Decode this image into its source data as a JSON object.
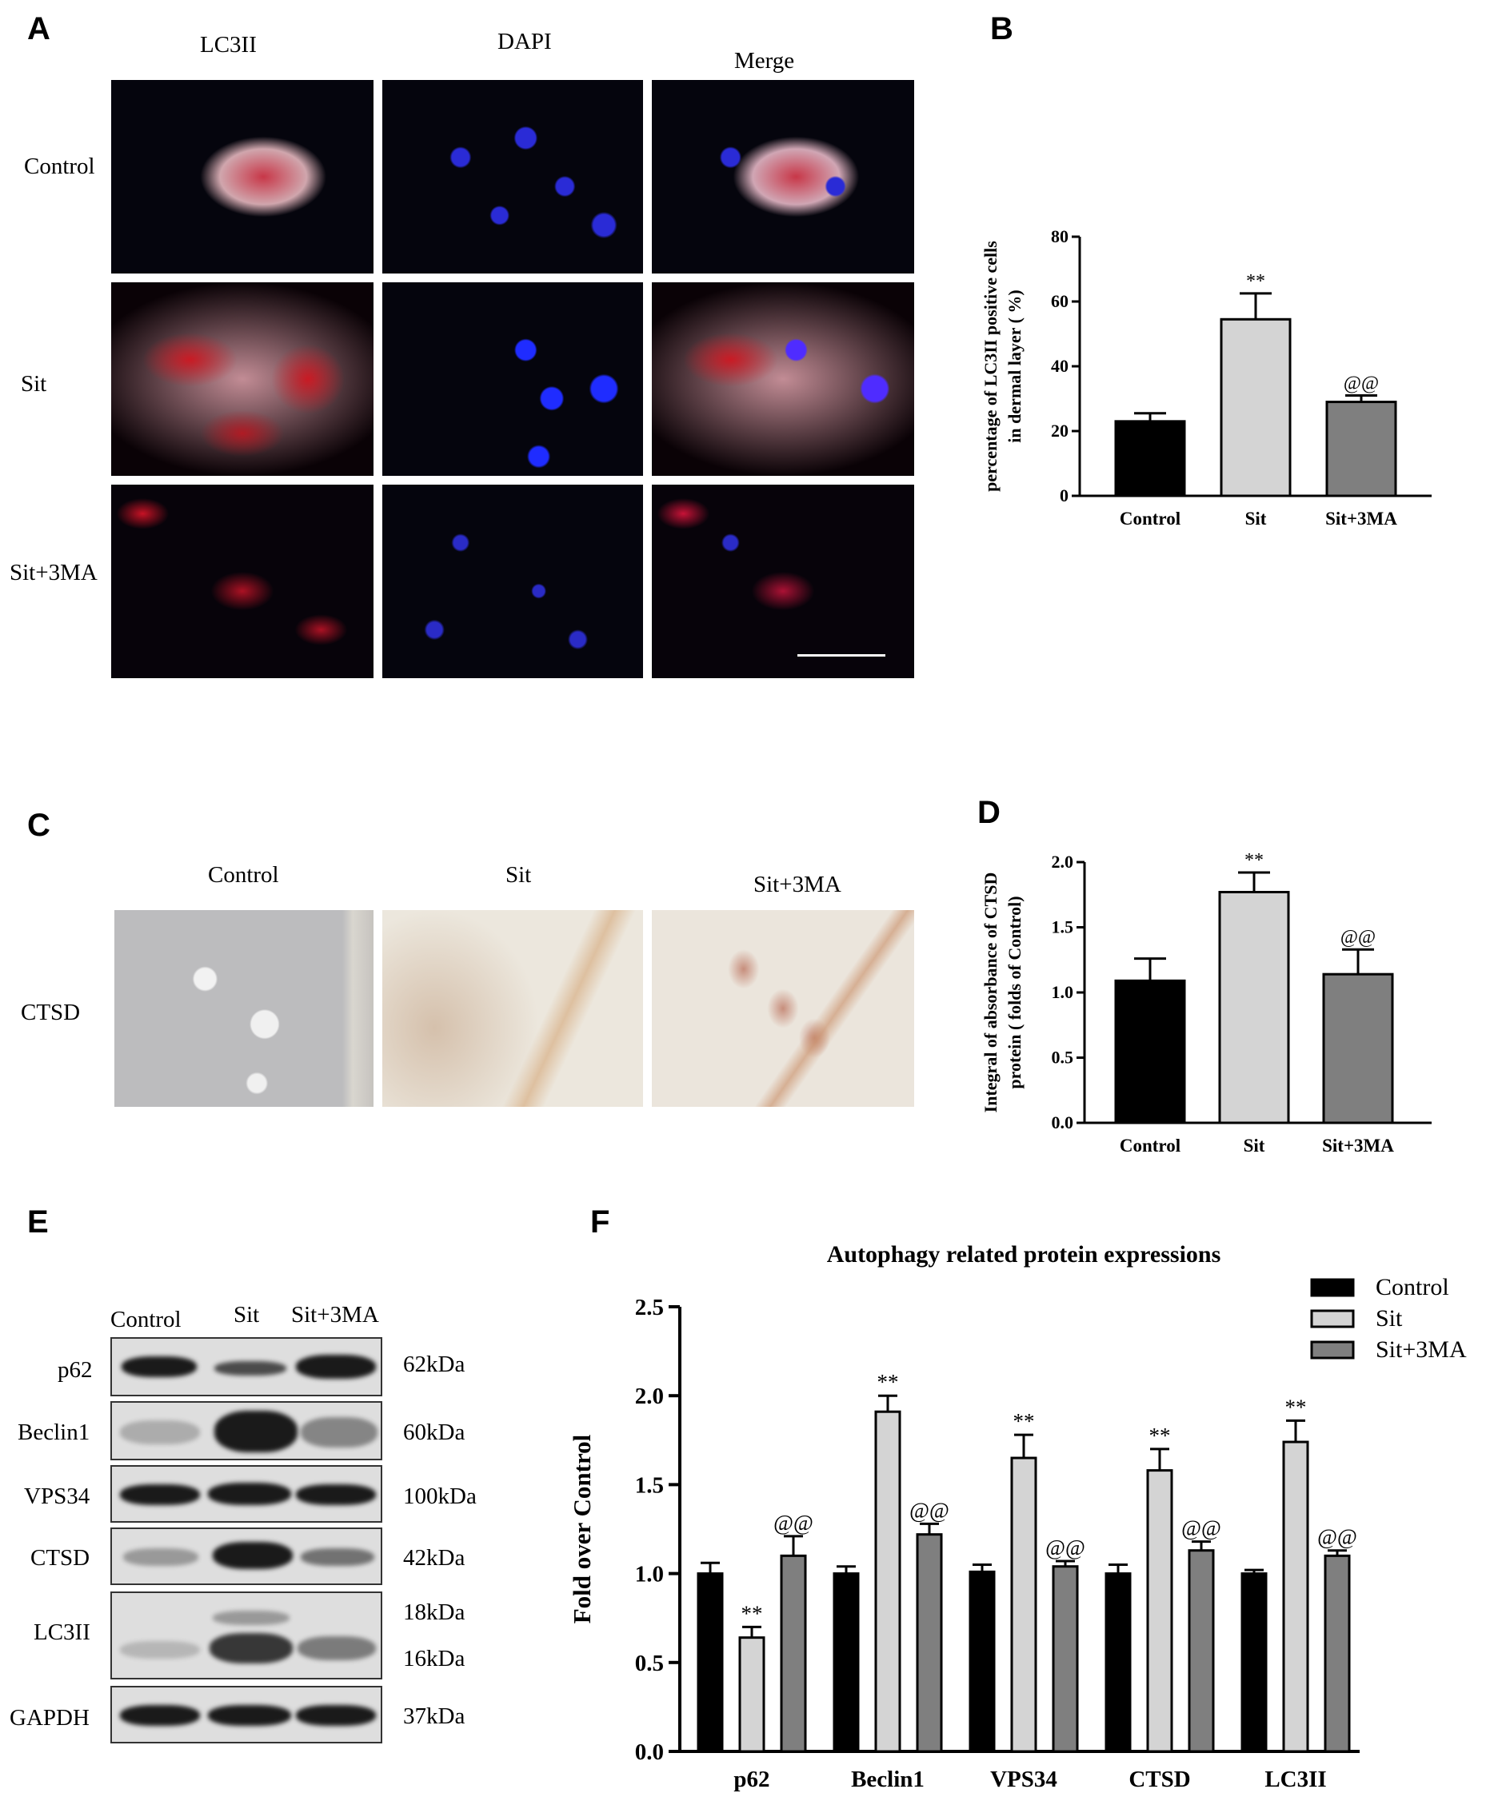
{
  "panels": {
    "a": {
      "letter": "A",
      "columns": [
        "LC3II",
        "DAPI",
        "Merge"
      ],
      "rows": [
        "Control",
        "Sit",
        "Sit+3MA"
      ]
    },
    "b": {
      "letter": "B"
    },
    "c": {
      "letter": "C",
      "columns": [
        "Control",
        "Sit",
        "Sit+3MA"
      ],
      "row": "CTSD"
    },
    "d": {
      "letter": "D"
    },
    "e": {
      "letter": "E",
      "columns": [
        "Control",
        "Sit",
        "Sit+3MA"
      ],
      "blots": [
        {
          "name": "p62",
          "sizes": [
            "62kDa"
          ]
        },
        {
          "name": "Beclin1",
          "sizes": [
            "60kDa"
          ]
        },
        {
          "name": "VPS34",
          "sizes": [
            "100kDa"
          ]
        },
        {
          "name": "CTSD",
          "sizes": [
            "42kDa"
          ]
        },
        {
          "name": "LC3II",
          "sizes": [
            "18kDa",
            "16kDa"
          ]
        },
        {
          "name": "GAPDH",
          "sizes": [
            "37kDa"
          ]
        }
      ]
    },
    "f": {
      "letter": "F"
    }
  },
  "colors": {
    "control": "#000000",
    "sit": "#d4d4d4",
    "sit3ma": "#7f7f7f"
  },
  "chart_data": [
    {
      "id": "b",
      "type": "bar",
      "categories": [
        "Control",
        "Sit",
        "Sit+3MA"
      ],
      "values": [
        23,
        54.5,
        29
      ],
      "errors": [
        2.5,
        8,
        2
      ],
      "annotations": [
        "",
        "**",
        "@@"
      ],
      "ylabel_lines": [
        "percentage of LC3II positive cells",
        "in dermal layer ( %)"
      ],
      "ylim": [
        0,
        80
      ],
      "yticks": [
        0,
        20,
        40,
        60,
        80
      ],
      "grid": false
    },
    {
      "id": "d",
      "type": "bar",
      "categories": [
        "Control",
        "Sit",
        "Sit+3MA"
      ],
      "values": [
        1.09,
        1.77,
        1.14
      ],
      "errors": [
        0.17,
        0.15,
        0.19
      ],
      "annotations": [
        "",
        "**",
        "@@"
      ],
      "ylabel_lines": [
        "Integral of absorbance of CTSD",
        "protein ( folds of Control)"
      ],
      "ylim": [
        0,
        2.0
      ],
      "yticks": [
        "0.0",
        "0.5",
        "1.0",
        "1.5",
        "2.0"
      ],
      "grid": false
    },
    {
      "id": "f",
      "type": "bar",
      "title": "Autophagy related protein expressions",
      "ylabel": "Fold over Control",
      "categories": [
        "p62",
        "Beclin1",
        "VPS34",
        "CTSD",
        "LC3II"
      ],
      "series": [
        {
          "name": "Control",
          "values": [
            1.0,
            1.0,
            1.01,
            1.0,
            1.0
          ],
          "errors": [
            0.06,
            0.04,
            0.04,
            0.05,
            0.02
          ],
          "annotations": [
            "",
            "",
            "",
            "",
            ""
          ]
        },
        {
          "name": "Sit",
          "values": [
            0.64,
            1.91,
            1.65,
            1.58,
            1.74
          ],
          "errors": [
            0.06,
            0.09,
            0.13,
            0.12,
            0.12
          ],
          "annotations": [
            "**",
            "**",
            "**",
            "**",
            "**"
          ]
        },
        {
          "name": "Sit+3MA",
          "values": [
            1.1,
            1.22,
            1.04,
            1.13,
            1.1
          ],
          "errors": [
            0.11,
            0.06,
            0.03,
            0.05,
            0.03
          ],
          "annotations": [
            "@@",
            "@@",
            "@@",
            "@@",
            "@@"
          ]
        }
      ],
      "ylim": [
        0,
        2.5
      ],
      "yticks": [
        "0.0",
        "0.5",
        "1.0",
        "1.5",
        "2.0",
        "2.5"
      ],
      "legend": "top-right",
      "grid": false
    }
  ]
}
